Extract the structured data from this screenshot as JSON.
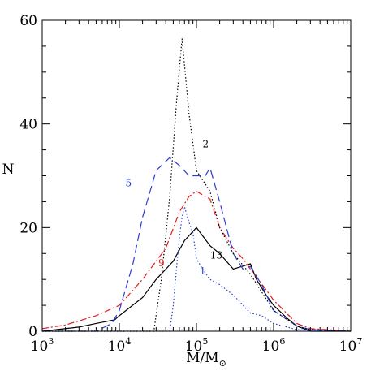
{
  "chart_data": {
    "type": "line",
    "xlabel": "M/M",
    "xlabel_subscript": "⊙",
    "ylabel": "N",
    "x_scale": "log",
    "xlim": [
      1000,
      10000000
    ],
    "ylim": [
      0,
      60
    ],
    "grid": false,
    "x_major_ticks": [
      1000,
      10000,
      100000,
      1000000,
      10000000
    ],
    "x_tick_labels": [
      {
        "base": "10",
        "exp": "3"
      },
      {
        "base": "10",
        "exp": "4"
      },
      {
        "base": "10",
        "exp": "5"
      },
      {
        "base": "10",
        "exp": "6"
      },
      {
        "base": "10",
        "exp": "7"
      }
    ],
    "y_major_ticks": [
      0,
      20,
      40,
      60
    ],
    "y_tick_labels": [
      "0",
      "20",
      "40",
      "60"
    ],
    "y_minor_step": 5,
    "series": [
      {
        "name": "13",
        "color": "#000000",
        "dash": "",
        "label_at": [
          150000,
          14
        ],
        "points": [
          [
            1000,
            0
          ],
          [
            3000,
            0.8
          ],
          [
            5000,
            1.5
          ],
          [
            8700,
            2.2
          ],
          [
            10000,
            3
          ],
          [
            20000,
            6.5
          ],
          [
            30000,
            10
          ],
          [
            50000,
            13.5
          ],
          [
            70000,
            17.5
          ],
          [
            100000,
            20
          ],
          [
            150000,
            16.5
          ],
          [
            200000,
            15
          ],
          [
            300000,
            12
          ],
          [
            500000,
            13
          ],
          [
            600000,
            10
          ],
          [
            800000,
            7
          ],
          [
            1000000,
            5
          ],
          [
            1500000,
            2.5
          ],
          [
            2000000,
            1
          ],
          [
            3000000,
            0
          ],
          [
            10000000,
            0
          ]
        ]
      },
      {
        "name": "9",
        "color": "#e31a1c",
        "dash": "8,3,2,3",
        "label_at": [
          32000,
          12.5
        ],
        "points": [
          [
            1000,
            0.5
          ],
          [
            2000,
            1.2
          ],
          [
            3000,
            2
          ],
          [
            5000,
            3
          ],
          [
            10000,
            5
          ],
          [
            20000,
            10
          ],
          [
            40000,
            16
          ],
          [
            60000,
            23
          ],
          [
            80000,
            26
          ],
          [
            100000,
            27
          ],
          [
            150000,
            25.5
          ],
          [
            200000,
            20
          ],
          [
            300000,
            16
          ],
          [
            400000,
            14
          ],
          [
            500000,
            12
          ],
          [
            800000,
            8
          ],
          [
            1000000,
            6
          ],
          [
            2000000,
            1.5
          ],
          [
            3000000,
            0.5
          ],
          [
            10000000,
            0
          ]
        ]
      },
      {
        "name": "5",
        "color": "#2a3fd6",
        "dash": "10,5",
        "label_at": [
          12000,
          28
        ],
        "points": [
          [
            1000,
            0
          ],
          [
            5000,
            0
          ],
          [
            8000,
            1.5
          ],
          [
            10000,
            4
          ],
          [
            15000,
            13
          ],
          [
            20000,
            22
          ],
          [
            30000,
            31
          ],
          [
            45000,
            33.5
          ],
          [
            60000,
            32
          ],
          [
            80000,
            30
          ],
          [
            100000,
            30
          ],
          [
            130000,
            30
          ],
          [
            150000,
            31.5
          ],
          [
            200000,
            25
          ],
          [
            300000,
            15
          ],
          [
            400000,
            12
          ],
          [
            500000,
            12.5
          ],
          [
            700000,
            9
          ],
          [
            1000000,
            4
          ],
          [
            2000000,
            1
          ],
          [
            3000000,
            0.3
          ],
          [
            10000000,
            0
          ]
        ]
      },
      {
        "name": "2",
        "color": "#000000",
        "dash": "1.5,2.5",
        "label_at": [
          120000,
          35.5
        ],
        "points": [
          [
            1000,
            0
          ],
          [
            28000,
            0
          ],
          [
            35000,
            10
          ],
          [
            45000,
            26
          ],
          [
            55000,
            44
          ],
          [
            65000,
            56.5
          ],
          [
            80000,
            42
          ],
          [
            100000,
            31
          ],
          [
            150000,
            27
          ],
          [
            200000,
            20
          ],
          [
            300000,
            15
          ],
          [
            500000,
            11
          ],
          [
            1000000,
            4
          ],
          [
            2000000,
            1
          ],
          [
            3000000,
            0.3
          ],
          [
            10000000,
            0
          ]
        ]
      },
      {
        "name": "1",
        "color": "#2a3fd6",
        "dash": "1.5,2.5",
        "label_at": [
          110000,
          11
        ],
        "points": [
          [
            1000,
            0
          ],
          [
            45000,
            0
          ],
          [
            50000,
            5
          ],
          [
            55000,
            12
          ],
          [
            60000,
            18
          ],
          [
            65000,
            22
          ],
          [
            70000,
            24
          ],
          [
            80000,
            21
          ],
          [
            90000,
            19
          ],
          [
            100000,
            14
          ],
          [
            120000,
            12
          ],
          [
            150000,
            10
          ],
          [
            200000,
            9
          ],
          [
            300000,
            7
          ],
          [
            500000,
            3.5
          ],
          [
            700000,
            3
          ],
          [
            1000000,
            1.5
          ],
          [
            2000000,
            0.3
          ],
          [
            10000000,
            0
          ]
        ]
      }
    ]
  }
}
